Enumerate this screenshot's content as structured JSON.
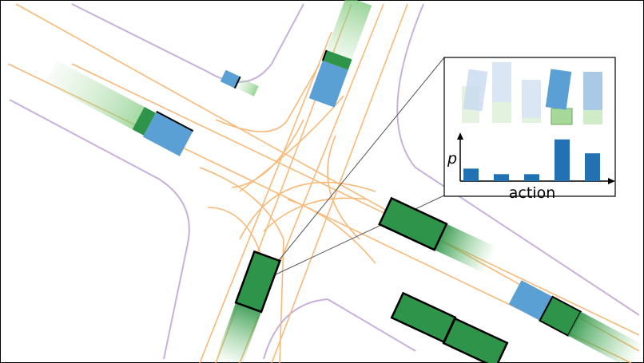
{
  "inset": {
    "y_axis_label": "p",
    "x_axis_label": "action",
    "action_probabilities": [
      0.18,
      0.1,
      0.1,
      0.6,
      0.4
    ]
  },
  "colors": {
    "lane_centerline": "#f8b26a",
    "road_boundary": "#c7b0db",
    "ego_vehicle": "#2e9449",
    "other_vehicle": "#5aa0d4",
    "probability_bar": "#2271b3",
    "trail": "#6cc26c"
  }
}
